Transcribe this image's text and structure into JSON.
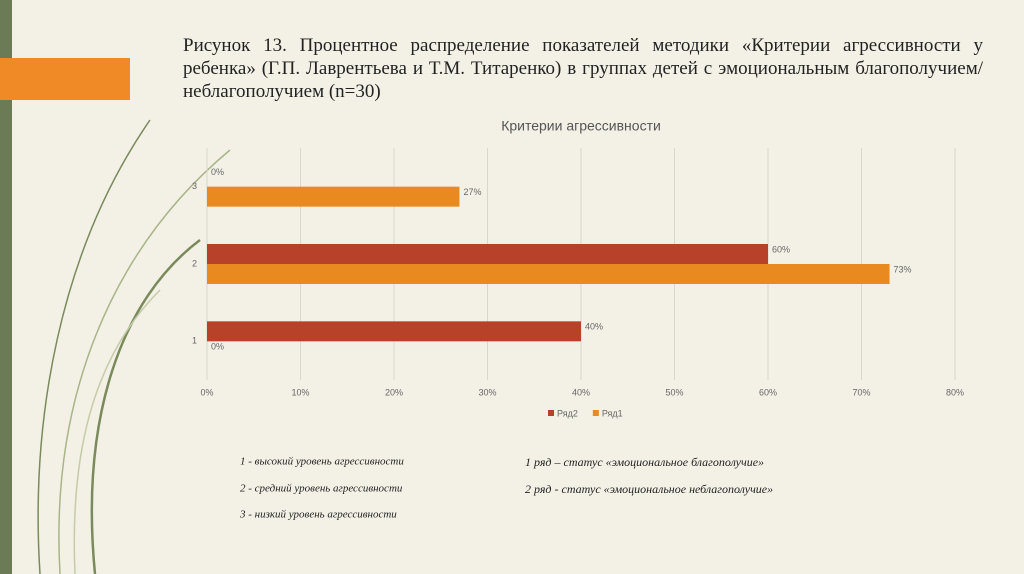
{
  "caption": "Рисунок 13. Процентное распределение показателей методики «Критерии агрессивности у ребенка» (Г.П. Лаврентьева и Т.М. Титаренко) в группах детей с эмоциональным благополучием/неблагополучием (n=30)",
  "chart_data": {
    "type": "bar",
    "orientation": "horizontal",
    "title": "Критерии агрессивности",
    "categories": [
      "1",
      "2",
      "3"
    ],
    "series": [
      {
        "name": "Ряд2",
        "color": "#b8412a",
        "values": [
          40,
          60,
          0
        ],
        "value_labels": [
          "40%",
          "60%",
          "0%"
        ]
      },
      {
        "name": "Ряд1",
        "color": "#e88a1f",
        "values": [
          0,
          73,
          27
        ],
        "value_labels": [
          "0%",
          "73%",
          "27%"
        ]
      }
    ],
    "xlim": [
      0,
      80
    ],
    "xticks": [
      {
        "value": 0,
        "label": "0%"
      },
      {
        "value": 10,
        "label": "10%"
      },
      {
        "value": 20,
        "label": "20%"
      },
      {
        "value": 30,
        "label": "30%"
      },
      {
        "value": 40,
        "label": "40%"
      },
      {
        "value": 50,
        "label": "50%"
      },
      {
        "value": 60,
        "label": "60%"
      },
      {
        "value": 70,
        "label": "70%"
      },
      {
        "value": 80,
        "label": "80%"
      }
    ],
    "grid": true,
    "legend": "bottom"
  },
  "notes": {
    "left": [
      "1 - высокий уровень агрессивности",
      "2 - средний уровень агрессивности",
      "3 - низкий уровень агрессивности"
    ],
    "right": [
      "1 ряд – статус «эмоциональное благополучие»",
      "2 ряд - статус «эмоциональное неблагополучие»"
    ]
  }
}
